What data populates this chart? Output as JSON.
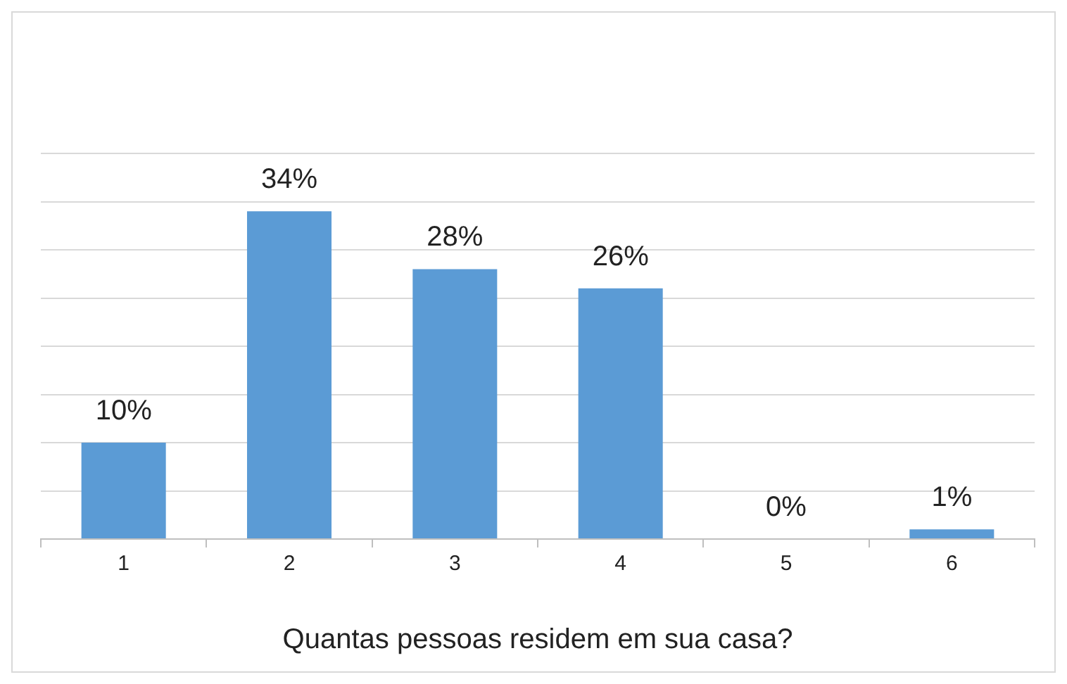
{
  "chart_data": {
    "type": "bar",
    "xlabel": "Quantas pessoas residem em sua casa?",
    "categories": [
      "1",
      "2",
      "3",
      "4",
      "5",
      "6"
    ],
    "values": [
      10,
      34,
      28,
      26,
      0,
      1
    ],
    "value_labels": [
      "10%",
      "34%",
      "28%",
      "26%",
      "0%",
      "1%"
    ],
    "color": "#5b9bd5",
    "ylim": [
      0,
      40
    ],
    "yticks": [
      {
        "value": 0,
        "label": null
      },
      {
        "value": 5,
        "label": null
      },
      {
        "value": 10,
        "label": null
      },
      {
        "value": 15,
        "label": null
      },
      {
        "value": 20,
        "label": null
      },
      {
        "value": 25,
        "label": null
      },
      {
        "value": 30,
        "label": null
      },
      {
        "value": 35,
        "label": null
      },
      {
        "value": 40,
        "label": null
      }
    ],
    "grid": "y",
    "tick_labels": "x"
  }
}
